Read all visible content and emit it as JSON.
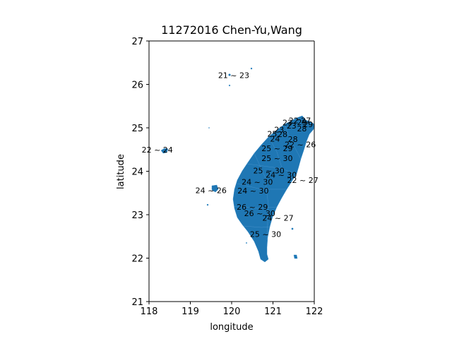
{
  "chart_data": {
    "type": "map",
    "title": "11272016 Chen-Yu,Wang",
    "xlabel": "longitude",
    "ylabel": "latitude",
    "xlim": [
      118,
      122
    ],
    "ylim": [
      21,
      27
    ],
    "xticks": [
      "118",
      "119",
      "120",
      "121",
      "122"
    ],
    "yticks": [
      "21",
      "22",
      "23",
      "24",
      "25",
      "26",
      "27"
    ],
    "fill_color": "#1f77b4",
    "grid": false,
    "region_labels": [
      {
        "text": "21 ~ 23",
        "lon": 120.05,
        "lat": 26.21
      },
      {
        "text": "22 ~ 24",
        "lon": 118.2,
        "lat": 24.5
      },
      {
        "text": "24 ~ 26",
        "lon": 119.5,
        "lat": 23.56
      },
      {
        "text": "27",
        "lon": 121.8,
        "lat": 25.17
      },
      {
        "text": "22",
        "lon": 121.5,
        "lat": 25.17
      },
      {
        "text": "29",
        "lon": 121.7,
        "lat": 25.13
      },
      {
        "text": "29",
        "lon": 121.85,
        "lat": 25.08
      },
      {
        "text": "23",
        "lon": 121.35,
        "lat": 25.12
      },
      {
        "text": "23",
        "lon": 121.45,
        "lat": 25.05
      },
      {
        "text": "28",
        "lon": 121.7,
        "lat": 24.98
      },
      {
        "text": "23",
        "lon": 121.15,
        "lat": 24.96
      },
      {
        "text": "25",
        "lon": 120.98,
        "lat": 24.86
      },
      {
        "text": "28",
        "lon": 121.23,
        "lat": 24.85
      },
      {
        "text": "24",
        "lon": 121.05,
        "lat": 24.75
      },
      {
        "text": "28",
        "lon": 121.48,
        "lat": 24.74
      },
      {
        "text": "22 ~ 26",
        "lon": 121.66,
        "lat": 24.62
      },
      {
        "text": "25 ~ 29",
        "lon": 121.1,
        "lat": 24.53
      },
      {
        "text": "25 ~ 30",
        "lon": 121.1,
        "lat": 24.3
      },
      {
        "text": "25 ~ 30",
        "lon": 120.9,
        "lat": 24.02
      },
      {
        "text": "24 ~ 30",
        "lon": 121.2,
        "lat": 23.92
      },
      {
        "text": "22 ~ 27",
        "lon": 121.72,
        "lat": 23.8
      },
      {
        "text": "24 ~ 30",
        "lon": 120.62,
        "lat": 23.76
      },
      {
        "text": "24 ~ 30",
        "lon": 120.52,
        "lat": 23.55
      },
      {
        "text": "26 ~ 29",
        "lon": 120.5,
        "lat": 23.18
      },
      {
        "text": "26 ~ 30",
        "lon": 120.68,
        "lat": 23.03
      },
      {
        "text": "24 ~ 27",
        "lon": 121.12,
        "lat": 22.93
      },
      {
        "text": "25 ~ 30",
        "lon": 120.82,
        "lat": 22.55
      }
    ]
  }
}
